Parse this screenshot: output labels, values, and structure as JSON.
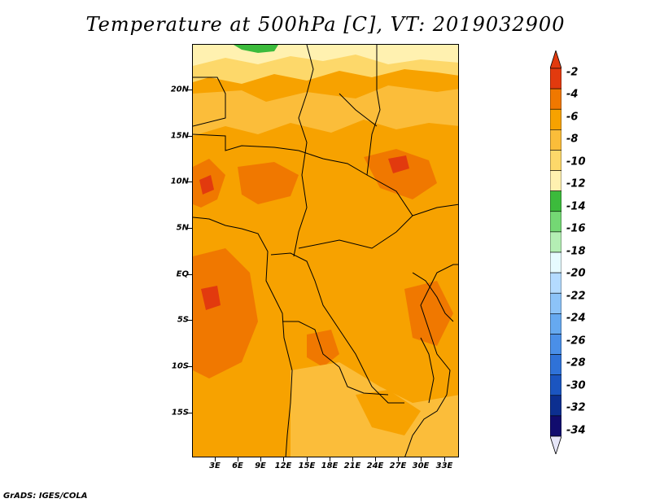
{
  "title": "Temperature at 500hPa [C], VT: 2019032900",
  "footer": "GrADS: IGES/COLA",
  "lat_labels": [
    "20N",
    "15N",
    "10N",
    "5N",
    "EQ",
    "5S",
    "10S",
    "15S"
  ],
  "lon_labels": [
    "3E",
    "6E",
    "9E",
    "12E",
    "15E",
    "18E",
    "21E",
    "24E",
    "27E",
    "30E",
    "33E"
  ],
  "colorbar": {
    "labels": [
      "-2",
      "-4",
      "-6",
      "-8",
      "-10",
      "-12",
      "-14",
      "-16",
      "-18",
      "-20",
      "-22",
      "-24",
      "-26",
      "-28",
      "-30",
      "-32",
      "-34"
    ],
    "colors": [
      "#e23a0e",
      "#f07800",
      "#f7a200",
      "#fbbd3a",
      "#fdd86a",
      "#fff1b0",
      "#3cbb3c",
      "#74d874",
      "#b4eeb4",
      "#e6fbff",
      "#b4dbff",
      "#8cc3f8",
      "#66a9f0",
      "#4a8fe8",
      "#2f72d8",
      "#1b55c0",
      "#0c2f90",
      "#110c6e"
    ],
    "top_arrow": "#e23a0e",
    "bottom_arrow": "#e6e6f8"
  }
}
